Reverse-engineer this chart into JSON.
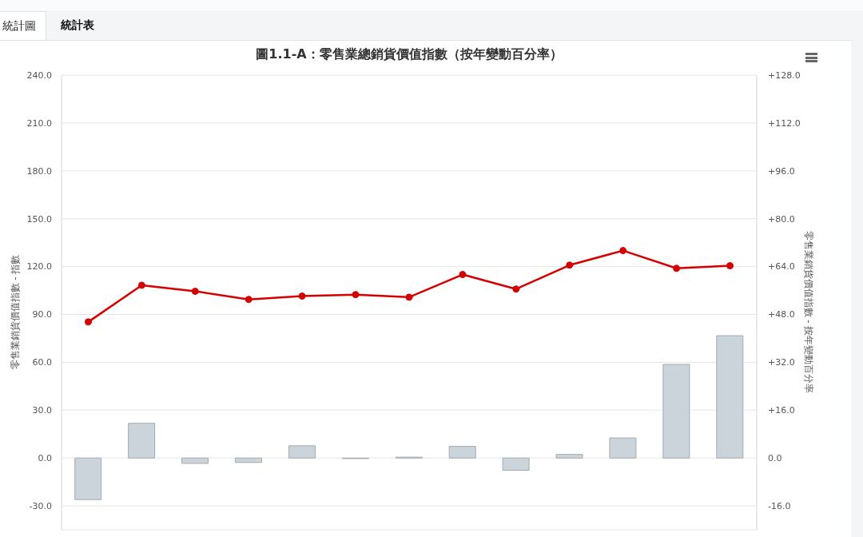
{
  "chart_data": {
    "type": "bar",
    "title": "圖1.1-A：零售業總銷貨價值指數（按年變動百分率）",
    "ylabel": "零售業銷貨價值指數 - 指數",
    "y2label": "零售業銷貨價值指數 - 按年變動百分率",
    "annotations": [
      "統計圖",
      "統計表"
    ],
    "categories": [
      null,
      null,
      null,
      null,
      null,
      null,
      null,
      null,
      null,
      null,
      null,
      null,
      null
    ],
    "series": [
      {
        "axis": "y2",
        "color": "#cbd4da",
        "values": [
          -13.9,
          11.6,
          -1.8,
          -1.5,
          4.1,
          -0.2,
          0.3,
          3.9,
          -4.1,
          1.2,
          6.7,
          31.3,
          40.9
        ]
      },
      {
        "type": "line",
        "color": "#d50000",
        "values": [
          85.3,
          108.3,
          104.5,
          99.4,
          101.5,
          102.4,
          100.8,
          115.0,
          105.9,
          120.9,
          130.0,
          118.9,
          120.5
        ]
      }
    ],
    "ylim": [
      -45,
      240
    ],
    "yticks": [
      {
        "value": -30,
        "label": "-30.0"
      },
      {
        "value": 0,
        "label": "0.0"
      },
      {
        "value": 30,
        "label": "30.0"
      },
      {
        "value": 60,
        "label": "60.0"
      },
      {
        "value": 90,
        "label": "90.0"
      },
      {
        "value": 120,
        "label": "120.0"
      },
      {
        "value": 150,
        "label": "150.0"
      },
      {
        "value": 180,
        "label": "180.0"
      },
      {
        "value": 210,
        "label": "210.0"
      },
      {
        "value": 240,
        "label": "240.0"
      }
    ],
    "y2lim": [
      -24,
      128
    ],
    "y2ticks": [
      {
        "value": -16,
        "label": "-16.0"
      },
      {
        "value": 0,
        "label": "0.0"
      },
      {
        "value": 16,
        "label": "+16.0"
      },
      {
        "value": 32,
        "label": "+32.0"
      },
      {
        "value": 48,
        "label": "+48.0"
      },
      {
        "value": 64,
        "label": "+64.0"
      },
      {
        "value": 80,
        "label": "+80.0"
      },
      {
        "value": 96,
        "label": "+96.0"
      },
      {
        "value": 112,
        "label": "+112.0"
      },
      {
        "value": 128,
        "label": "+128.0"
      }
    ],
    "grid": "y",
    "marker": "circle",
    "line_style": "solid"
  }
}
